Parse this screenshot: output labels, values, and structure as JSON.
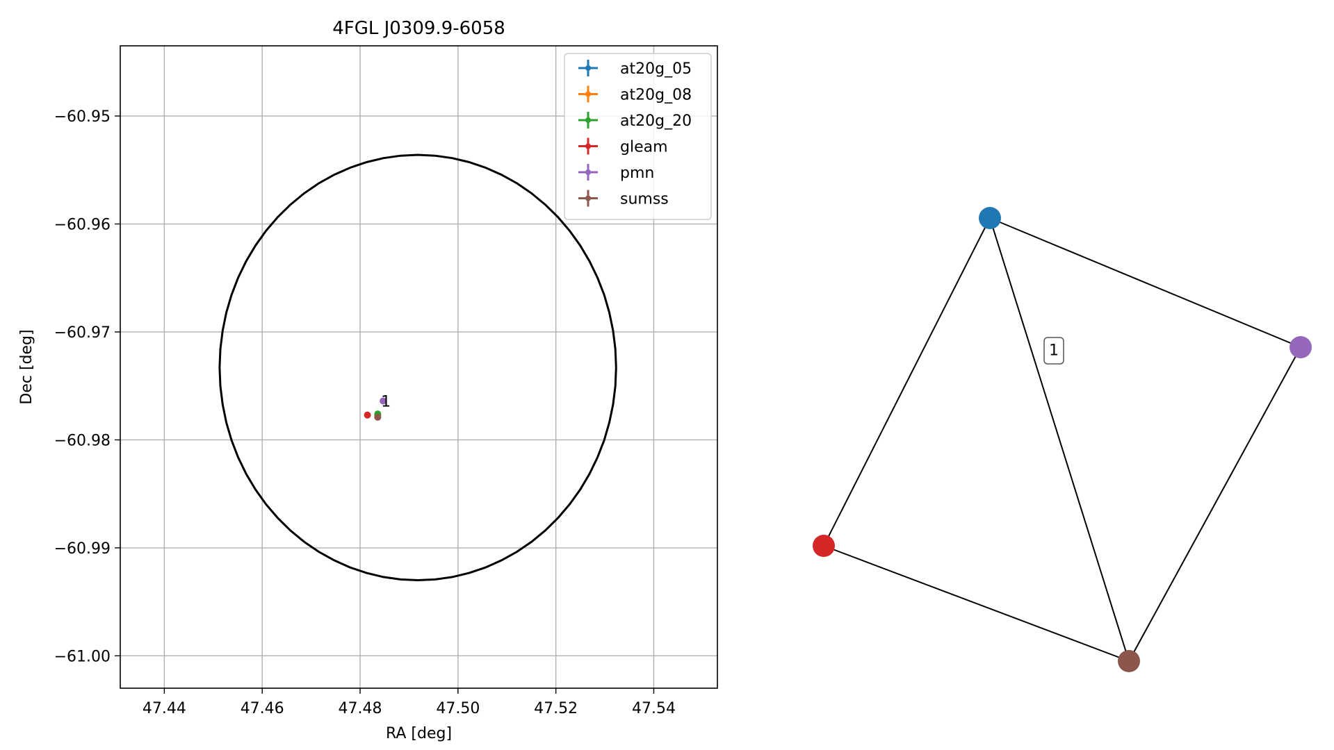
{
  "chart_data": [
    {
      "type": "scatter",
      "title": "4FGL J0309.9-6058",
      "xlabel": "RA [deg]",
      "ylabel": "Dec [deg]",
      "xlim": [
        47.431,
        47.553
      ],
      "ylim": [
        -61.003,
        -60.9435
      ],
      "xticks": [
        47.44,
        47.46,
        47.48,
        47.5,
        47.52,
        47.54
      ],
      "xtick_labels": [
        "47.44",
        "47.46",
        "47.48",
        "47.50",
        "47.52",
        "47.54"
      ],
      "yticks": [
        -60.95,
        -60.96,
        -60.97,
        -60.98,
        -60.99,
        -61.0
      ],
      "ytick_labels": [
        "−60.95",
        "−60.96",
        "−60.97",
        "−60.98",
        "−60.99",
        "−61.00"
      ],
      "grid": true,
      "legend_position": "top-right",
      "ellipse": {
        "center_ra": 47.4918,
        "center_dec": -60.9733,
        "radius_ra": 0.0405,
        "radius_dec": 0.0197,
        "color": "#000000"
      },
      "series": [
        {
          "name": "at20g_05",
          "color": "#1f77b4",
          "x": [
            47.4836
          ],
          "y": [
            -60.9777
          ]
        },
        {
          "name": "at20g_08",
          "color": "#ff7f0e",
          "x": [
            47.4836
          ],
          "y": [
            -60.9777
          ]
        },
        {
          "name": "at20g_20",
          "color": "#2ca02c",
          "x": [
            47.4836
          ],
          "y": [
            -60.9776
          ]
        },
        {
          "name": "gleam",
          "color": "#d62728",
          "x": [
            47.4815
          ],
          "y": [
            -60.9777
          ]
        },
        {
          "name": "pmn",
          "color": "#9467bd",
          "x": [
            47.4847
          ],
          "y": [
            -60.9764
          ]
        },
        {
          "name": "sumss",
          "color": "#8c564b",
          "x": [
            47.4836
          ],
          "y": [
            -60.9779
          ]
        }
      ],
      "annotations": [
        {
          "text": "1",
          "x": 47.4847,
          "y": -60.9764
        }
      ]
    },
    {
      "type": "network",
      "nodes": [
        {
          "id": "at20g",
          "color": "#1f77b4"
        },
        {
          "id": "pmn",
          "color": "#9467bd"
        },
        {
          "id": "gleam",
          "color": "#d62728"
        },
        {
          "id": "sumss",
          "color": "#8c564b"
        }
      ],
      "edges": [
        [
          "at20g",
          "pmn"
        ],
        [
          "at20g",
          "gleam"
        ],
        [
          "at20g",
          "sumss"
        ],
        [
          "pmn",
          "sumss"
        ],
        [
          "gleam",
          "sumss"
        ]
      ],
      "cluster_label": "1"
    }
  ]
}
